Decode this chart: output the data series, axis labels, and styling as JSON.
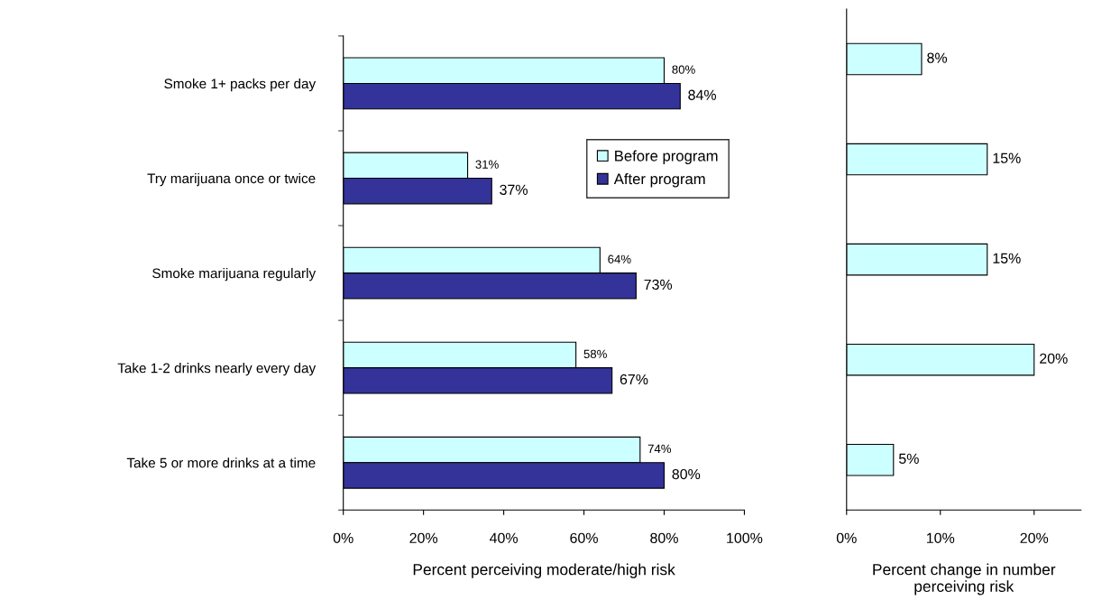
{
  "chart_data": [
    {
      "type": "bar",
      "orientation": "horizontal",
      "xlabel": "Percent perceiving moderate/high risk",
      "categories": [
        "Smoke 1+ packs per day",
        "Try marijuana once or twice",
        "Smoke marijuana regularly",
        "Take 1-2 drinks nearly every day",
        "Take 5 or more drinks at a time"
      ],
      "series": [
        {
          "name": "Before program",
          "color": "#ccffff",
          "values": [
            80,
            31,
            64,
            58,
            74
          ],
          "value_labels": [
            "80%",
            "31%",
            "64%",
            "58%",
            "74%"
          ]
        },
        {
          "name": "After program",
          "color": "#333399",
          "values": [
            84,
            37,
            73,
            67,
            80
          ],
          "value_labels": [
            "84%",
            "37%",
            "73%",
            "67%",
            "80%"
          ]
        }
      ],
      "xlim": [
        0,
        100
      ],
      "xticks": [
        {
          "value": 0,
          "label": "0%"
        },
        {
          "value": 20,
          "label": "20%"
        },
        {
          "value": 40,
          "label": "40%"
        },
        {
          "value": 60,
          "label": "60%"
        },
        {
          "value": 80,
          "label": "80%"
        },
        {
          "value": 100,
          "label": "100%"
        }
      ],
      "legend": "right",
      "grid": false
    },
    {
      "type": "bar",
      "orientation": "horizontal",
      "xlabel": "Percent change in number\nperceiving risk",
      "categories": [
        null,
        null,
        null,
        null,
        null
      ],
      "series": [
        {
          "color": "#ccffff",
          "values": [
            8,
            15,
            15,
            20,
            5
          ],
          "value_labels": [
            "8%",
            "15%",
            "15%",
            "20%",
            "5%"
          ]
        }
      ],
      "xlim": [
        0,
        25
      ],
      "xticks": [
        {
          "value": 0,
          "label": "0%"
        },
        {
          "value": 10,
          "label": "10%"
        },
        {
          "value": 20,
          "label": "20%"
        }
      ],
      "legend": false,
      "grid": false
    }
  ]
}
